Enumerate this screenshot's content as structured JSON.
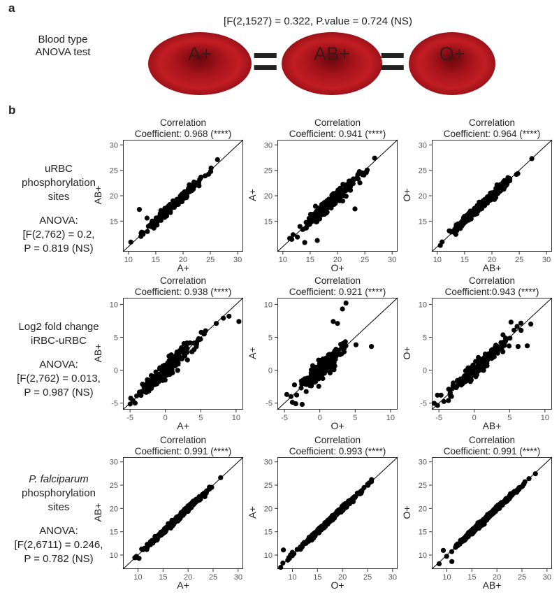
{
  "panel_a": {
    "letter": "a",
    "test_label_line1": "Blood type",
    "test_label_line2": "ANOVA test",
    "stat": "[F(2,1527) = 0.322, P.value = 0.724 (NS)",
    "cells": [
      "A+",
      "AB+",
      "O+"
    ],
    "equals_sign": "=",
    "cell_color": "#b8141c"
  },
  "panel_b": {
    "letter": "b",
    "rows": [
      {
        "lines": [
          "uRBC",
          "phosphorylation",
          "sites"
        ],
        "italic_first": false,
        "anova": [
          "ANOVA:",
          "[F(2,762) = 0.2,",
          "P = 0.819 (NS)"
        ]
      },
      {
        "lines": [
          "Log2 fold change",
          "iRBC-uRBC"
        ],
        "italic_first": false,
        "anova": [
          "ANOVA:",
          "[F(2,762) = 0.013,",
          "P = 0.987 (NS)"
        ]
      },
      {
        "lines": [
          "P. falciparum",
          "phosphorylation",
          "sites"
        ],
        "italic_first": true,
        "anova": [
          "ANOVA:",
          "[F(2,6711) = 0.246,",
          "P = 0.782 (NS)"
        ]
      }
    ]
  },
  "chart_data": [
    {
      "type": "scatter",
      "title_l1": "Correlation",
      "title_l2": "Coefficient: 0.968 (****)",
      "xlabel": "A+",
      "ylabel": "AB+",
      "xlim": [
        9,
        31
      ],
      "ylim": [
        9,
        31
      ],
      "xticks": [
        10,
        15,
        20,
        25,
        30
      ],
      "yticks": [
        15,
        20,
        25,
        30
      ],
      "seed": 11,
      "n": 260,
      "center": 18.5,
      "spread": 2.6,
      "noise": 0.55,
      "outliers": [
        [
          12,
          17.3
        ],
        [
          13.4,
          15.6
        ],
        [
          26.3,
          27.1
        ]
      ]
    },
    {
      "type": "scatter",
      "title_l1": "Correlation",
      "title_l2": "Coefficient: 0.941 (****)",
      "xlabel": "O+",
      "ylabel": "A+",
      "xlim": [
        9,
        31
      ],
      "ylim": [
        9,
        31
      ],
      "xticks": [
        10,
        15,
        20,
        25,
        30
      ],
      "yticks": [
        15,
        20,
        25,
        30
      ],
      "seed": 23,
      "n": 260,
      "center": 18.5,
      "spread": 2.6,
      "noise": 0.85,
      "outliers": [
        [
          16.3,
          11.2
        ],
        [
          14,
          10.8
        ],
        [
          23.2,
          17.4
        ],
        [
          26.8,
          27.4
        ]
      ]
    },
    {
      "type": "scatter",
      "title_l1": "Correlation",
      "title_l2": "Coefficient: 0.964 (****)",
      "xlabel": "AB+",
      "ylabel": "O+",
      "xlim": [
        9,
        31
      ],
      "ylim": [
        9,
        31
      ],
      "xticks": [
        10,
        15,
        20,
        25,
        30
      ],
      "yticks": [
        15,
        20,
        25,
        30
      ],
      "seed": 37,
      "n": 260,
      "center": 18.5,
      "spread": 2.6,
      "noise": 0.6,
      "outliers": [
        [
          12.2,
          13.1
        ],
        [
          27.3,
          27.3
        ],
        [
          13.4,
          12.4
        ]
      ]
    },
    {
      "type": "scatter",
      "title_l1": "Correlation",
      "title_l2": "Coefficient: 0.938 (****)",
      "xlabel": "A+",
      "ylabel": "AB+",
      "xlim": [
        -6,
        11
      ],
      "ylim": [
        -6,
        11
      ],
      "xticks": [
        -5,
        0,
        5,
        10
      ],
      "yticks": [
        -5,
        0,
        5,
        10
      ],
      "seed": 41,
      "n": 170,
      "center": 0.6,
      "spread": 2.2,
      "noise": 0.9,
      "outliers": [
        [
          9,
          8.2
        ],
        [
          10.4,
          7.4
        ],
        [
          8.2,
          7.9
        ],
        [
          -4.6,
          -4.6
        ],
        [
          7.2,
          7.1
        ]
      ]
    },
    {
      "type": "scatter",
      "title_l1": "Correlation",
      "title_l2": "Coefficient: 0.921 (****)",
      "xlabel": "O+",
      "ylabel": "A+",
      "xlim": [
        -6,
        11
      ],
      "ylim": [
        -6,
        11
      ],
      "xticks": [
        -5,
        0,
        5,
        10
      ],
      "yticks": [
        -5,
        0,
        5,
        10
      ],
      "seed": 53,
      "n": 170,
      "center": 0.2,
      "spread": 1.9,
      "noise": 1.1,
      "outliers": [
        [
          3.2,
          9.3
        ],
        [
          3.7,
          10.2
        ],
        [
          7.3,
          3.6
        ],
        [
          -3.4,
          -5.1
        ],
        [
          -2.5,
          -5.2
        ],
        [
          1.9,
          7.4
        ],
        [
          2.5,
          7.1
        ]
      ]
    },
    {
      "type": "scatter",
      "title_l1": "Correlation",
      "title_l2": "Coefficient:0.943 (****)",
      "xlabel": "AB+",
      "ylabel": "O+",
      "xlim": [
        -6,
        11
      ],
      "ylim": [
        -6,
        11
      ],
      "xticks": [
        -5,
        0,
        5,
        10
      ],
      "yticks": [
        -5,
        0,
        5,
        10
      ],
      "seed": 67,
      "n": 170,
      "center": 0.3,
      "spread": 2.1,
      "noise": 0.8,
      "outliers": [
        [
          -5.2,
          -3.8
        ],
        [
          -4.7,
          -3.8
        ],
        [
          5.2,
          7.3
        ],
        [
          8,
          7
        ],
        [
          7.5,
          3.7
        ],
        [
          6.2,
          3.6
        ]
      ]
    },
    {
      "type": "scatter",
      "title_l1": "Correlation",
      "title_l2": "Coefficient: 0.991 (****)",
      "xlabel": "A+",
      "ylabel": "AB+",
      "xlim": [
        7,
        31
      ],
      "ylim": [
        7,
        31
      ],
      "xticks": [
        10,
        15,
        20,
        25,
        30
      ],
      "yticks": [
        10,
        15,
        20,
        25,
        30
      ],
      "seed": 71,
      "n": 420,
      "center": 17.5,
      "spread": 3.0,
      "noise": 0.35,
      "outliers": [
        [
          10.2,
          9.3
        ],
        [
          26.5,
          26.6
        ]
      ]
    },
    {
      "type": "scatter",
      "title_l1": "Correlation",
      "title_l2": "Coefficient: 0.993 (****)",
      "xlabel": "O+",
      "ylabel": "A+",
      "xlim": [
        7,
        31
      ],
      "ylim": [
        7,
        31
      ],
      "xticks": [
        10,
        15,
        20,
        25,
        30
      ],
      "yticks": [
        10,
        15,
        20,
        25,
        30
      ],
      "seed": 83,
      "n": 420,
      "center": 17.5,
      "spread": 3.0,
      "noise": 0.32,
      "outliers": [
        [
          8.2,
          11.1
        ],
        [
          10.3,
          10.3
        ],
        [
          25.8,
          26.2
        ]
      ]
    },
    {
      "type": "scatter",
      "title_l1": "Correlation",
      "title_l2": "Coefficient: 0.991 (****)",
      "xlabel": "AB+",
      "ylabel": "O+",
      "xlim": [
        7,
        31
      ],
      "ylim": [
        7,
        31
      ],
      "xticks": [
        10,
        15,
        20,
        25,
        30
      ],
      "yticks": [
        10,
        15,
        20,
        25,
        30
      ],
      "seed": 97,
      "n": 420,
      "center": 17.5,
      "spread": 3.0,
      "noise": 0.35,
      "outliers": [
        [
          9.3,
          11
        ],
        [
          11,
          8.6
        ],
        [
          26.4,
          26.4
        ]
      ]
    }
  ]
}
